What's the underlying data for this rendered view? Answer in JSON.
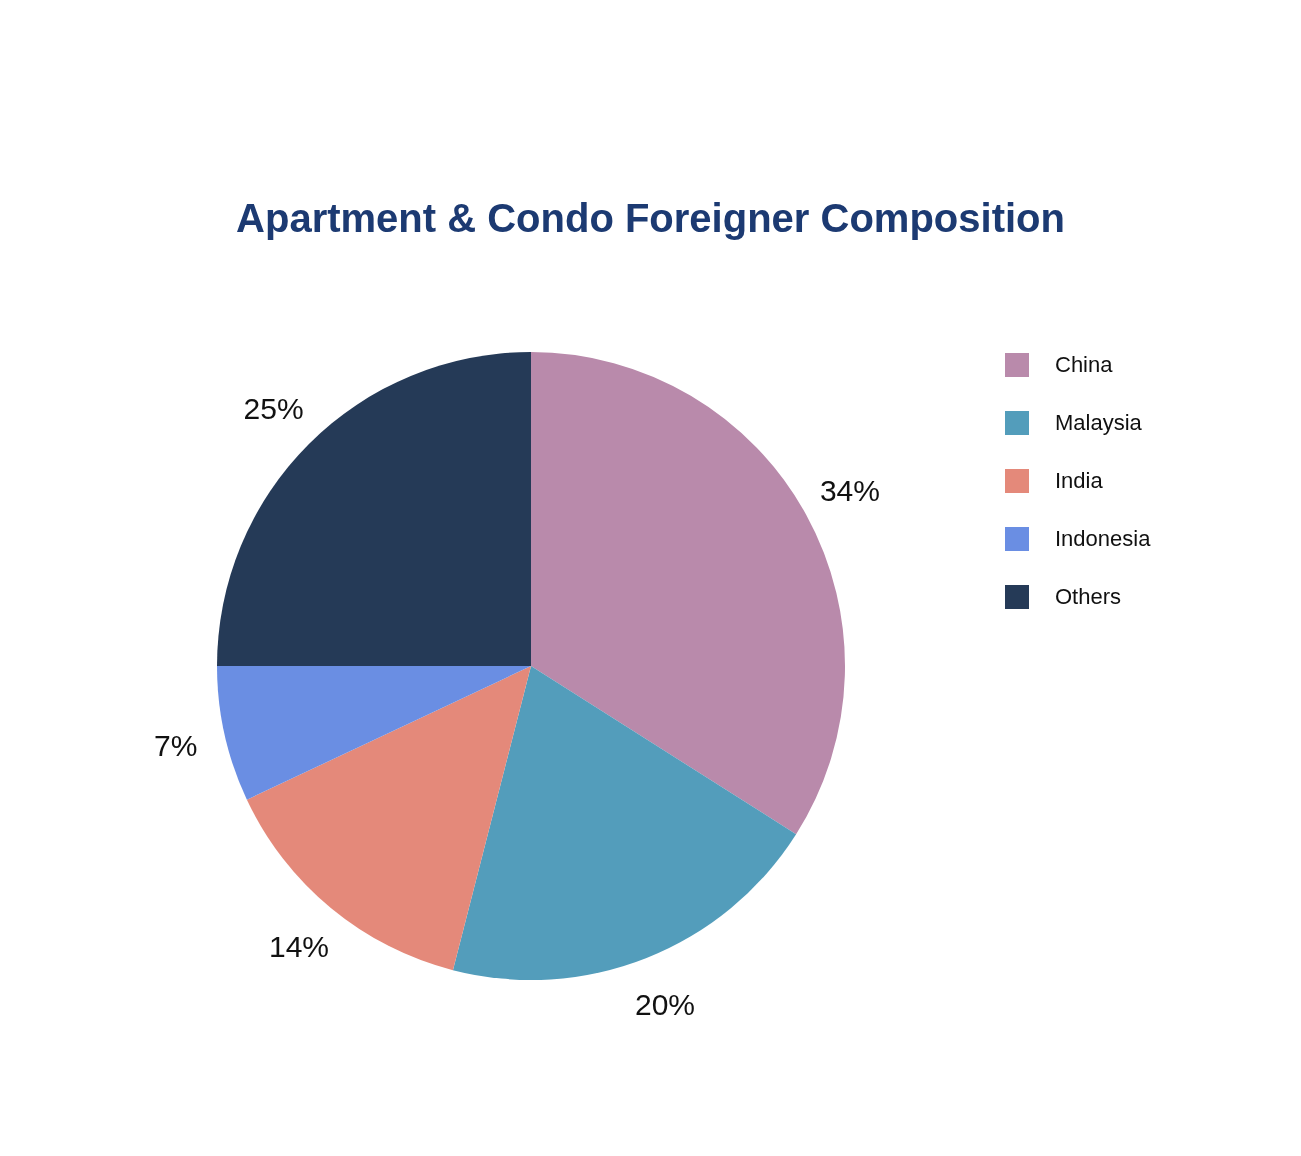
{
  "chart_data": {
    "type": "pie",
    "title": "Apartment & Condo Foreigner Composition",
    "categories": [
      "China",
      "Malaysia",
      "India",
      "Indonesia",
      "Others"
    ],
    "values": [
      34,
      20,
      14,
      7,
      25
    ],
    "value_labels": [
      "34%",
      "20%",
      "14%",
      "7%",
      "25%"
    ],
    "colors": [
      "#b98aab",
      "#539dbb",
      "#e4897a",
      "#6a8ee3",
      "#253a57"
    ],
    "legend": "top right"
  }
}
